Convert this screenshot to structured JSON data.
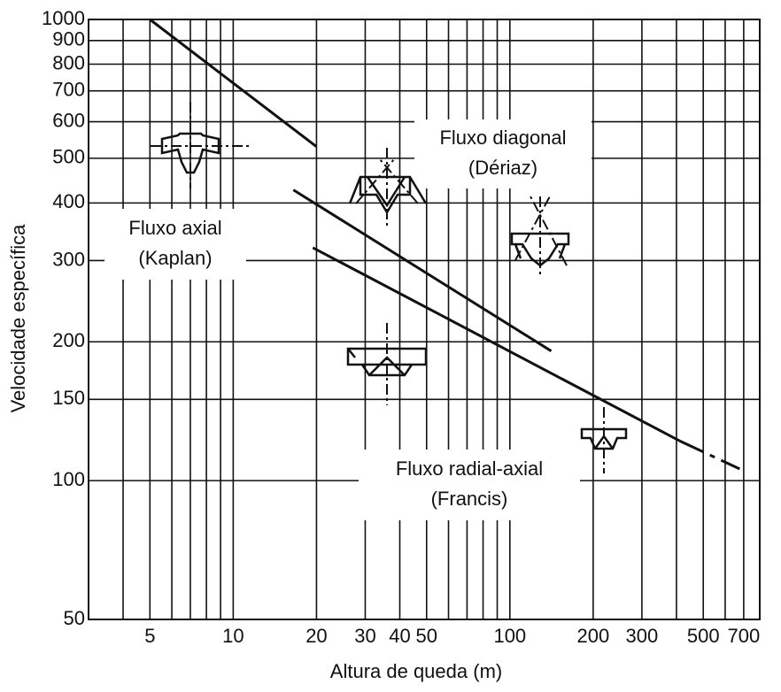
{
  "chart_data": {
    "type": "line",
    "xlabel": "Altura de queda (m)",
    "ylabel": "Velocidade específica",
    "xscale": "log",
    "yscale": "log",
    "grid": true,
    "xlim": [
      3,
      800
    ],
    "ylim": [
      50,
      1000
    ],
    "xticks": [
      5,
      10,
      20,
      30,
      40,
      50,
      100,
      200,
      300,
      500,
      700
    ],
    "x_minor_ticks": [
      4,
      6,
      7,
      8,
      9,
      60,
      70,
      80,
      90,
      400,
      600,
      800
    ],
    "yticks": [
      50,
      100,
      150,
      200,
      300,
      400,
      500,
      600,
      700,
      800,
      900,
      1000
    ],
    "series": [
      {
        "color": "#111111",
        "x": [
          5,
          20
        ],
        "values": [
          1000,
          530
        ]
      },
      {
        "color": "#111111",
        "x": [
          16.5,
          141
        ],
        "values": [
          427,
          191
        ]
      },
      {
        "color": "#111111",
        "x": [
          19.4,
          410
        ],
        "values": [
          320,
          122
        ]
      },
      {
        "color": "#111111",
        "dashed": true,
        "x": [
          410,
          677
        ],
        "values": [
          122,
          106
        ]
      }
    ],
    "annotations": [
      {
        "lines": [
          "Fluxo axial",
          "(Kaplan)"
        ]
      },
      {
        "lines": [
          "Fluxo diagonal",
          "(Dériaz)"
        ]
      },
      {
        "lines": [
          "Fluxo radial-axial",
          "(Francis)"
        ]
      }
    ]
  }
}
